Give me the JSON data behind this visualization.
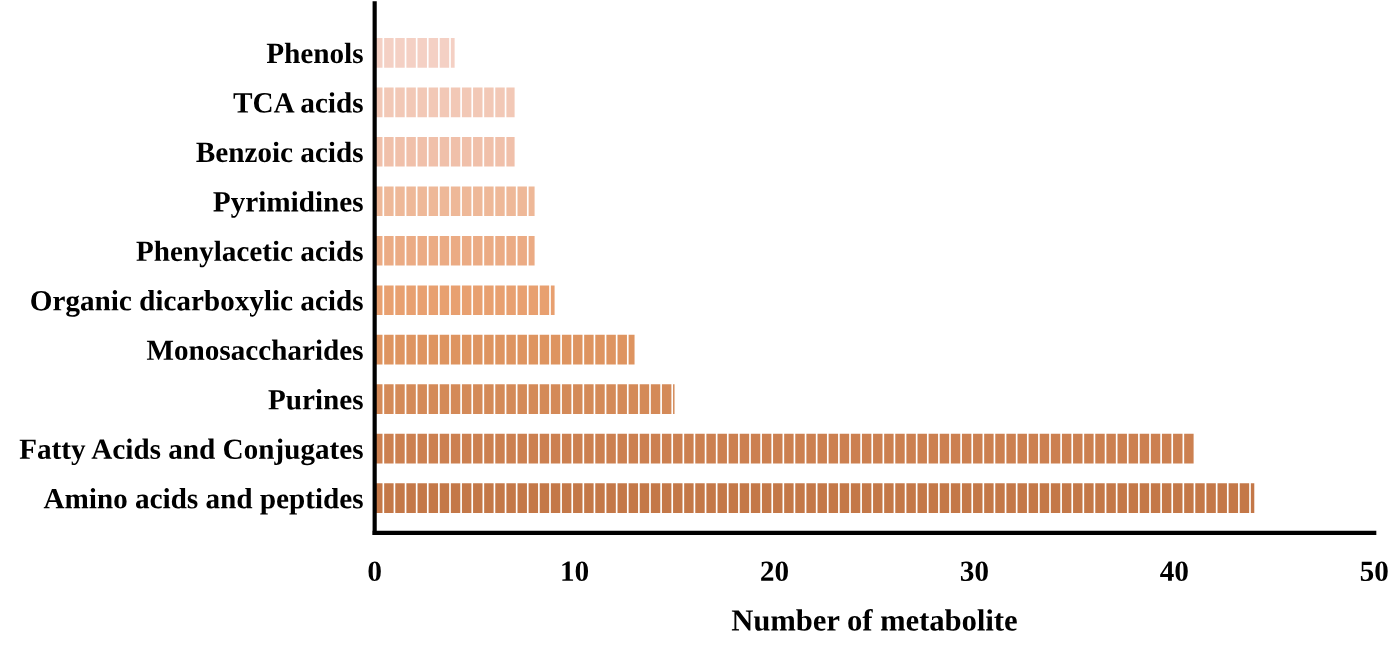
{
  "chart_data": {
    "type": "bar",
    "orientation": "horizontal",
    "xlabel": "Number of metabolite",
    "categories": [
      "Phenols",
      "TCA acids",
      "Benzoic acids",
      "Pyrimidines",
      "Phenylacetic acids",
      "Organic dicarboxylic acids",
      "Monosaccharides",
      "Purines",
      "Fatty Acids and Conjugates",
      "Amino acids and peptides"
    ],
    "values": [
      4,
      7,
      7,
      8,
      8,
      9,
      13,
      15,
      41,
      44
    ],
    "colors": [
      "#f4d0c4",
      "#f2c8b6",
      "#f0c0aa",
      "#eeb898",
      "#ebab84",
      "#e8a070",
      "#de9460",
      "#d48a58",
      "#cc8050",
      "#c47848"
    ],
    "xlim": [
      0,
      50
    ],
    "xticks": [
      0,
      10,
      20,
      30,
      40,
      50
    ],
    "grid": false,
    "legend": false
  }
}
